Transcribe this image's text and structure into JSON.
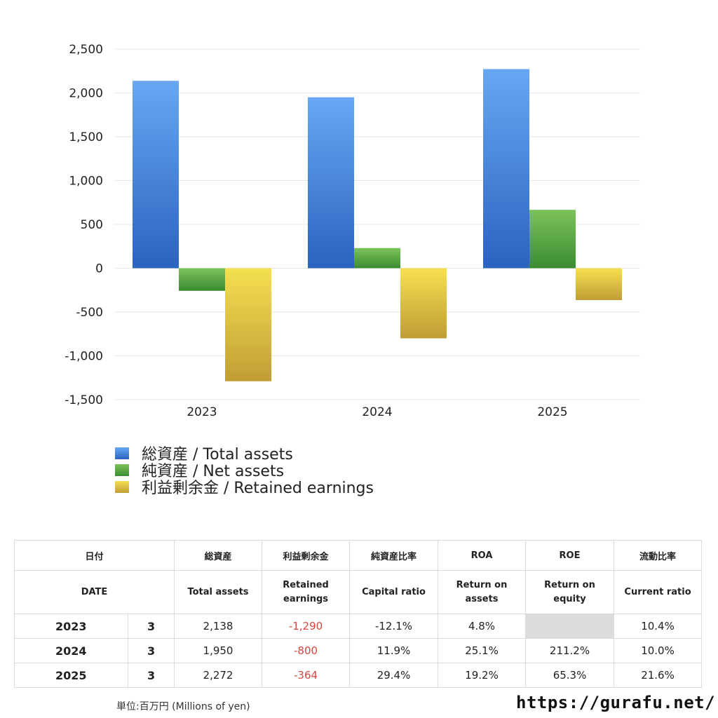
{
  "chart_data": {
    "type": "bar",
    "categories": [
      "2023",
      "2024",
      "2025"
    ],
    "series": [
      {
        "name": "総資産 / Total assets",
        "values": [
          2138,
          1950,
          2272
        ],
        "color_top": "#68a7f3",
        "color_bottom": "#2b63c0"
      },
      {
        "name": "純資産 / Net assets",
        "values": [
          -258,
          230,
          666
        ],
        "color_top": "#7cc25a",
        "color_bottom": "#3a8c32"
      },
      {
        "name": "利益剰余金 / Retained earnings",
        "values": [
          -1290,
          -800,
          -364
        ],
        "color_top": "#f5e050",
        "color_bottom": "#c09d36"
      }
    ],
    "ylim": [
      -1500,
      2500
    ],
    "yticks": [
      2500,
      2000,
      1500,
      1000,
      500,
      0,
      -500,
      -1000,
      -1500
    ],
    "ytick_labels": [
      "2,500",
      "2,000",
      "1,500",
      "1,000",
      "500",
      "0",
      "-500",
      "-1,000",
      "-1,500"
    ],
    "grid": true,
    "legend_position": "bottom-left"
  },
  "table": {
    "headers_ja": [
      "日付",
      "",
      "総資産",
      "利益剰余金",
      "純資産比率",
      "ROA",
      "ROE",
      "流動比率"
    ],
    "headers_en": [
      "DATE",
      "",
      "Total assets",
      "Retained earnings",
      "Capital ratio",
      "Return on assets",
      "Return on equity",
      "Current ratio"
    ],
    "rows": [
      {
        "year": "2023",
        "month": "3",
        "total_assets": "2,138",
        "retained": "-1,290",
        "capital_ratio": "-12.1%",
        "roa": "4.8%",
        "roe": "",
        "current_ratio": "10.4%"
      },
      {
        "year": "2024",
        "month": "3",
        "total_assets": "1,950",
        "retained": "-800",
        "capital_ratio": "11.9%",
        "roa": "25.1%",
        "roe": "211.2%",
        "current_ratio": "10.0%"
      },
      {
        "year": "2025",
        "month": "3",
        "total_assets": "2,272",
        "retained": "-364",
        "capital_ratio": "29.4%",
        "roa": "19.2%",
        "roe": "65.3%",
        "current_ratio": "21.6%"
      }
    ]
  },
  "footer": {
    "unit": "単位:百万円 (Millions of yen)",
    "site": "https://gurafu.net/"
  }
}
